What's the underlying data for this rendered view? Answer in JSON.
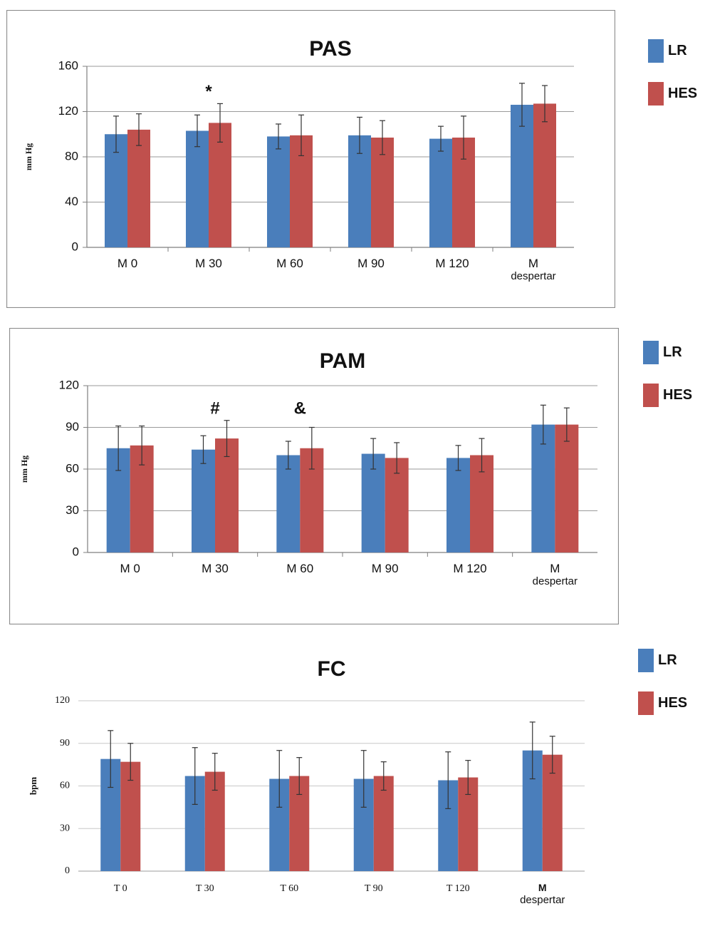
{
  "colors": {
    "LR": "#4a7ebb",
    "HES": "#c0504d",
    "grid": "#9a9a9a",
    "axis": "#7f7f7f",
    "border": "#8c8c8c",
    "errorbar": "#333333"
  },
  "legend": [
    {
      "series": "LR",
      "label": "LR"
    },
    {
      "series": "HES",
      "label": "HES"
    }
  ],
  "chart_data": [
    {
      "type": "bar",
      "title": "PAS",
      "ylabel": "mm Hg",
      "xlabel": "",
      "ylim": [
        0,
        160
      ],
      "yticks": [
        0,
        40,
        80,
        120,
        160
      ],
      "ytick_labels": [
        "0",
        "40",
        "80",
        "120",
        "160"
      ],
      "grid": true,
      "legend_position": "right",
      "categories": [
        [
          "M 0"
        ],
        [
          "M 30"
        ],
        [
          "M 60"
        ],
        [
          "M 90"
        ],
        [
          "M 120"
        ],
        [
          "M",
          "despertar"
        ]
      ],
      "series": [
        {
          "name": "LR",
          "values": [
            100,
            103,
            98,
            99,
            96,
            126
          ],
          "errors": [
            16,
            14,
            11,
            16,
            11,
            19
          ]
        },
        {
          "name": "HES",
          "values": [
            104,
            110,
            99,
            97,
            97,
            127
          ],
          "errors": [
            14,
            17,
            18,
            15,
            19,
            16
          ]
        }
      ],
      "annotations": [
        {
          "text": "*",
          "category_index": 1,
          "value": 137
        }
      ]
    },
    {
      "type": "bar",
      "title": "PAM",
      "ylabel": "mm Hg",
      "xlabel": "",
      "ylim": [
        0,
        120
      ],
      "yticks": [
        0,
        30,
        60,
        90,
        120
      ],
      "ytick_labels": [
        "0",
        "30",
        "60",
        "90",
        "120"
      ],
      "grid": true,
      "legend_position": "right",
      "categories": [
        [
          "M 0"
        ],
        [
          "M 30"
        ],
        [
          "M 60"
        ],
        [
          "M 90"
        ],
        [
          "M 120"
        ],
        [
          "M",
          "despertar"
        ]
      ],
      "series": [
        {
          "name": "LR",
          "values": [
            75,
            74,
            70,
            71,
            68,
            92
          ],
          "errors": [
            16,
            10,
            10,
            11,
            9,
            14
          ]
        },
        {
          "name": "HES",
          "values": [
            77,
            82,
            75,
            68,
            70,
            92
          ],
          "errors": [
            14,
            13,
            15,
            11,
            12,
            12
          ]
        }
      ],
      "annotations": [
        {
          "text": "#",
          "category_index": 1,
          "value": 103
        },
        {
          "text": "&",
          "category_index": 2,
          "value": 103
        }
      ]
    },
    {
      "type": "bar",
      "title": "FC",
      "ylabel": "bpm",
      "xlabel": "",
      "ylim": [
        0,
        120
      ],
      "yticks": [
        0,
        30,
        60,
        90,
        120
      ],
      "ytick_labels": [
        "0",
        "30",
        "60",
        "90",
        "120"
      ],
      "grid": true,
      "legend_position": "right",
      "categories": [
        [
          "T 0"
        ],
        [
          "T 30"
        ],
        [
          "T 60"
        ],
        [
          "T 90"
        ],
        [
          "T 120"
        ],
        [
          "M",
          "despertar"
        ]
      ],
      "series": [
        {
          "name": "LR",
          "values": [
            79,
            67,
            65,
            65,
            64,
            85
          ],
          "errors": [
            20,
            20,
            20,
            20,
            20,
            20
          ]
        },
        {
          "name": "HES",
          "values": [
            77,
            70,
            67,
            67,
            66,
            82
          ],
          "errors": [
            13,
            13,
            13,
            10,
            12,
            13
          ]
        }
      ],
      "annotations": []
    }
  ]
}
